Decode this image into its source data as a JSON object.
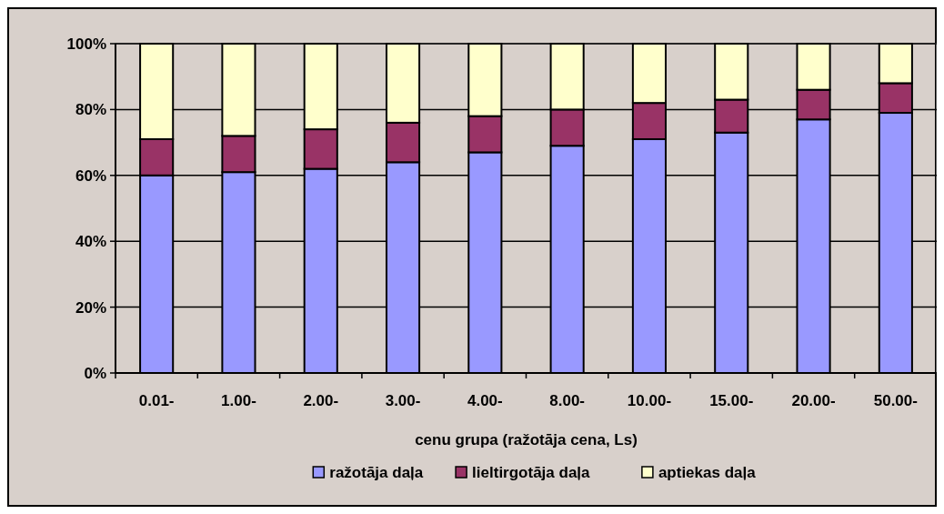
{
  "chart_data": {
    "type": "bar",
    "stacked": true,
    "xlabel": "cenu grupa (ražotāja cena, Ls)",
    "categories": [
      "0.01-",
      "1.00-",
      "2.00-",
      "3.00-",
      "4.00-",
      "8.00-",
      "10.00-",
      "15.00-",
      "20.00-",
      "50.00-"
    ],
    "series": [
      {
        "name": "ražotāja daļa",
        "color": "#9999ff",
        "values": [
          60,
          61,
          62,
          64,
          67,
          69,
          71,
          73,
          77,
          79
        ]
      },
      {
        "name": "lieltirgotāja daļa",
        "color": "#993366",
        "values": [
          11,
          11,
          12,
          12,
          11,
          11,
          11,
          10,
          9,
          9
        ]
      },
      {
        "name": "aptiekas daļa",
        "color": "#ffffcc",
        "values": [
          29,
          28,
          26,
          24,
          22,
          20,
          18,
          17,
          14,
          12
        ]
      }
    ],
    "ylim": [
      0,
      100
    ],
    "yticks": [
      {
        "value": 0,
        "label": "0%"
      },
      {
        "value": 20,
        "label": "20%"
      },
      {
        "value": 40,
        "label": "40%"
      },
      {
        "value": 60,
        "label": "60%"
      },
      {
        "value": 80,
        "label": "80%"
      },
      {
        "value": 100,
        "label": "100%"
      }
    ],
    "grid": "y",
    "legend": "bottom"
  }
}
